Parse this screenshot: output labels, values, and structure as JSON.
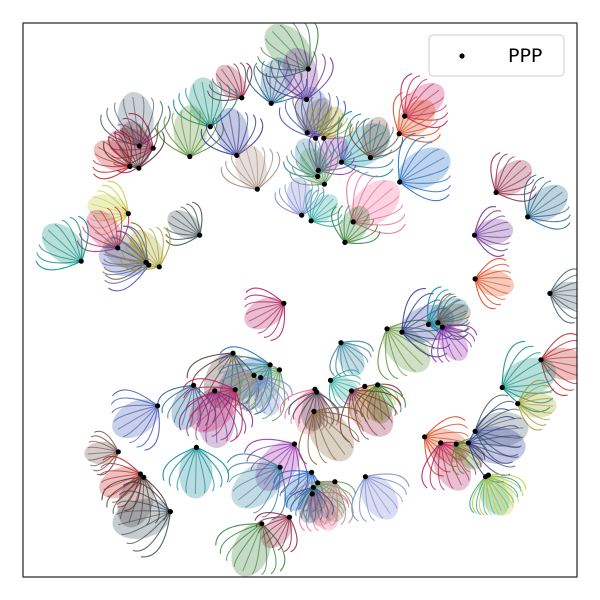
{
  "chart_data": {
    "type": "scatter",
    "title": "",
    "xlabel": "",
    "ylabel": "",
    "axes": {
      "ticks": "none",
      "grid": false
    },
    "legend": {
      "placement": "top-right",
      "entries": [
        "PPP"
      ]
    },
    "xlim": [
      0,
      1
    ],
    "ylim": [
      0,
      1
    ],
    "series": [
      {
        "name": "PPP",
        "marker": "dot",
        "color": "#000000",
        "points": [
          [
            0.515,
            0.917
          ],
          [
            0.395,
            0.865
          ],
          [
            0.448,
            0.855
          ],
          [
            0.512,
            0.862
          ],
          [
            0.689,
            0.832
          ],
          [
            0.338,
            0.813
          ],
          [
            0.513,
            0.802
          ],
          [
            0.528,
            0.792
          ],
          [
            0.543,
            0.792
          ],
          [
            0.679,
            0.8
          ],
          [
            0.21,
            0.778
          ],
          [
            0.235,
            0.774
          ],
          [
            0.301,
            0.759
          ],
          [
            0.386,
            0.761
          ],
          [
            0.575,
            0.749
          ],
          [
            0.627,
            0.757
          ],
          [
            0.533,
            0.734
          ],
          [
            0.532,
            0.723
          ],
          [
            0.193,
            0.741
          ],
          [
            0.209,
            0.738
          ],
          [
            0.68,
            0.713
          ],
          [
            0.544,
            0.709
          ],
          [
            0.423,
            0.7
          ],
          [
            0.503,
            0.653
          ],
          [
            0.52,
            0.643
          ],
          [
            0.19,
            0.656
          ],
          [
            0.596,
            0.641
          ],
          [
            0.319,
            0.617
          ],
          [
            0.581,
            0.604
          ],
          [
            0.854,
            0.694
          ],
          [
            0.911,
            0.65
          ],
          [
            0.815,
            0.617
          ],
          [
            0.171,
            0.594
          ],
          [
            0.105,
            0.57
          ],
          [
            0.222,
            0.568
          ],
          [
            0.227,
            0.563
          ],
          [
            0.246,
            0.56
          ],
          [
            0.816,
            0.538
          ],
          [
            0.951,
            0.512
          ],
          [
            0.471,
            0.494
          ],
          [
            0.657,
            0.448
          ],
          [
            0.684,
            0.442
          ],
          [
            0.732,
            0.456
          ],
          [
            0.749,
            0.459
          ],
          [
            0.757,
            0.451
          ],
          [
            0.574,
            0.423
          ],
          [
            0.935,
            0.392
          ],
          [
            0.379,
            0.404
          ],
          [
            0.446,
            0.383
          ],
          [
            0.463,
            0.374
          ],
          [
            0.417,
            0.364
          ],
          [
            0.429,
            0.36
          ],
          [
            0.555,
            0.355
          ],
          [
            0.617,
            0.344
          ],
          [
            0.527,
            0.339
          ],
          [
            0.53,
            0.334
          ],
          [
            0.64,
            0.347
          ],
          [
            0.593,
            0.336
          ],
          [
            0.308,
            0.346
          ],
          [
            0.346,
            0.336
          ],
          [
            0.383,
            0.338
          ],
          [
            0.865,
            0.342
          ],
          [
            0.525,
            0.299
          ],
          [
            0.243,
            0.309
          ],
          [
            0.893,
            0.313
          ],
          [
            0.725,
            0.253
          ],
          [
            0.816,
            0.263
          ],
          [
            0.754,
            0.242
          ],
          [
            0.782,
            0.24
          ],
          [
            0.804,
            0.242
          ],
          [
            0.313,
            0.234
          ],
          [
            0.172,
            0.226
          ],
          [
            0.49,
            0.24
          ],
          [
            0.464,
            0.198
          ],
          [
            0.212,
            0.186
          ],
          [
            0.218,
            0.18
          ],
          [
            0.521,
            0.189
          ],
          [
            0.532,
            0.17
          ],
          [
            0.563,
            0.172
          ],
          [
            0.618,
            0.181
          ],
          [
            0.835,
            0.181
          ],
          [
            0.84,
            0.184
          ],
          [
            0.522,
            0.15
          ],
          [
            0.266,
            0.118
          ],
          [
            0.431,
            0.096
          ],
          [
            0.481,
            0.108
          ],
          [
            0.524,
            0.162
          ]
        ]
      }
    ]
  }
}
